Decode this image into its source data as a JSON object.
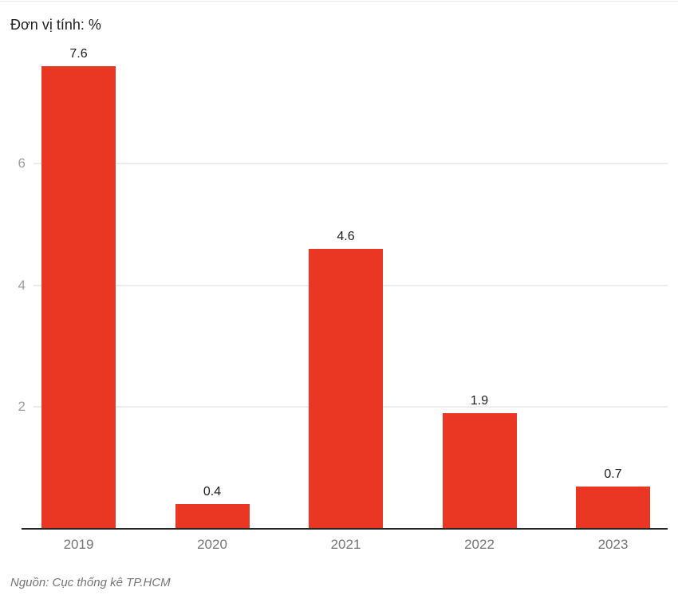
{
  "chart": {
    "unit_label": "Đơn vị tính: %",
    "source": "Nguồn: Cục thống kê TP.HCM"
  },
  "chart_data": {
    "type": "bar",
    "categories": [
      "2019",
      "2020",
      "2021",
      "2022",
      "2023"
    ],
    "values": [
      7.6,
      0.4,
      4.6,
      1.9,
      0.7
    ],
    "value_labels": [
      "7.6",
      "0.4",
      "4.6",
      "1.9",
      "0.7"
    ],
    "title": "Đơn vị tính: %",
    "xlabel": "",
    "ylabel": "%",
    "ylim": [
      0,
      7.6
    ],
    "yticks": [
      2,
      4,
      6
    ],
    "ytick_labels": [
      "2",
      "4",
      "6"
    ],
    "grid": true,
    "legend": false,
    "source": "Nguồn: Cục thống kê TP.HCM"
  },
  "colors": {
    "bar": "#ea3723",
    "axis_line": "#262626",
    "gridline": "#ececec",
    "y_tick_label": "#9e9e9e",
    "x_tick_label": "#757575",
    "value_label": "#1d1d1d",
    "title": "#212121",
    "source": "#757575",
    "top_divider": "#e7e7e7"
  }
}
